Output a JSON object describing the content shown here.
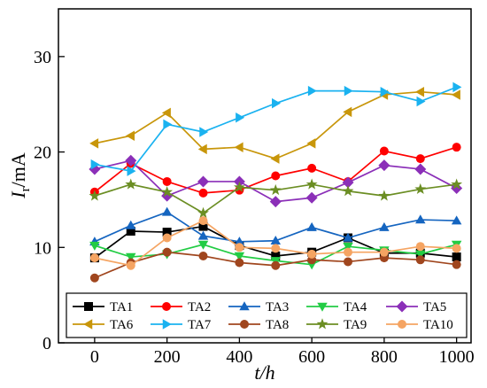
{
  "chart_data": {
    "type": "line",
    "xlabel": "t/h",
    "ylabel_main": "I",
    "ylabel_sub": "r",
    "ylabel_unit": "/mA",
    "xlim": [
      -100,
      1040
    ],
    "ylim": [
      0,
      35
    ],
    "x_ticks": [
      0,
      200,
      400,
      600,
      800,
      1000
    ],
    "y_ticks": [
      0,
      10,
      20,
      30
    ],
    "x_tick_labels": [
      "0",
      "200",
      "400",
      "600",
      "800",
      "1000"
    ],
    "y_tick_labels": [
      "0",
      "10",
      "20",
      "30"
    ],
    "grid": false,
    "legend_position": "bottom",
    "x": [
      0,
      100,
      200,
      300,
      400,
      500,
      600,
      700,
      800,
      900,
      1000
    ],
    "series": [
      {
        "name": "TA1",
        "color": "#000000",
        "marker": "square",
        "values": [
          8.9,
          11.7,
          11.6,
          12.2,
          10.2,
          9.1,
          9.5,
          11.0,
          9.4,
          9.4,
          9.0
        ]
      },
      {
        "name": "TA2",
        "color": "#ff0000",
        "marker": "circle",
        "values": [
          15.8,
          18.8,
          16.9,
          15.7,
          16.0,
          17.5,
          18.3,
          16.9,
          20.1,
          19.3,
          20.5
        ]
      },
      {
        "name": "TA3",
        "color": "#1565c0",
        "marker": "triangle-up",
        "values": [
          10.6,
          12.3,
          13.7,
          11.2,
          10.6,
          10.7,
          12.1,
          11.0,
          12.1,
          12.9,
          12.8
        ]
      },
      {
        "name": "TA4",
        "color": "#22cc44",
        "marker": "triangle-down",
        "values": [
          10.2,
          9.0,
          9.3,
          10.3,
          9.1,
          8.6,
          8.2,
          10.1,
          9.7,
          9.3,
          10.3
        ]
      },
      {
        "name": "TA5",
        "color": "#8b2fb8",
        "marker": "diamond",
        "values": [
          18.2,
          19.1,
          15.4,
          16.9,
          16.9,
          14.8,
          15.2,
          16.8,
          18.6,
          18.2,
          16.2
        ]
      },
      {
        "name": "TA6",
        "color": "#c8960a",
        "marker": "triangle-left",
        "values": [
          20.9,
          21.7,
          24.1,
          20.3,
          20.5,
          19.3,
          20.9,
          24.2,
          26.0,
          26.3,
          26.0
        ]
      },
      {
        "name": "TA7",
        "color": "#1ab2f0",
        "marker": "triangle-right",
        "values": [
          18.7,
          18.0,
          22.9,
          22.1,
          23.6,
          25.1,
          26.4,
          26.4,
          26.3,
          25.3,
          26.8
        ]
      },
      {
        "name": "TA8",
        "color": "#a0461e",
        "marker": "circle",
        "values": [
          6.8,
          8.4,
          9.5,
          9.1,
          8.4,
          8.1,
          8.7,
          8.5,
          8.9,
          8.7,
          8.2
        ]
      },
      {
        "name": "TA9",
        "color": "#6b8e23",
        "marker": "star",
        "values": [
          15.4,
          16.6,
          15.8,
          13.6,
          16.3,
          16.0,
          16.6,
          15.9,
          15.4,
          16.1,
          16.6
        ]
      },
      {
        "name": "TA10",
        "color": "#f5a462",
        "marker": "circle",
        "values": [
          8.9,
          8.1,
          11.0,
          12.8,
          10.0,
          9.9,
          9.3,
          9.5,
          9.5,
          10.1,
          9.9
        ]
      }
    ]
  }
}
